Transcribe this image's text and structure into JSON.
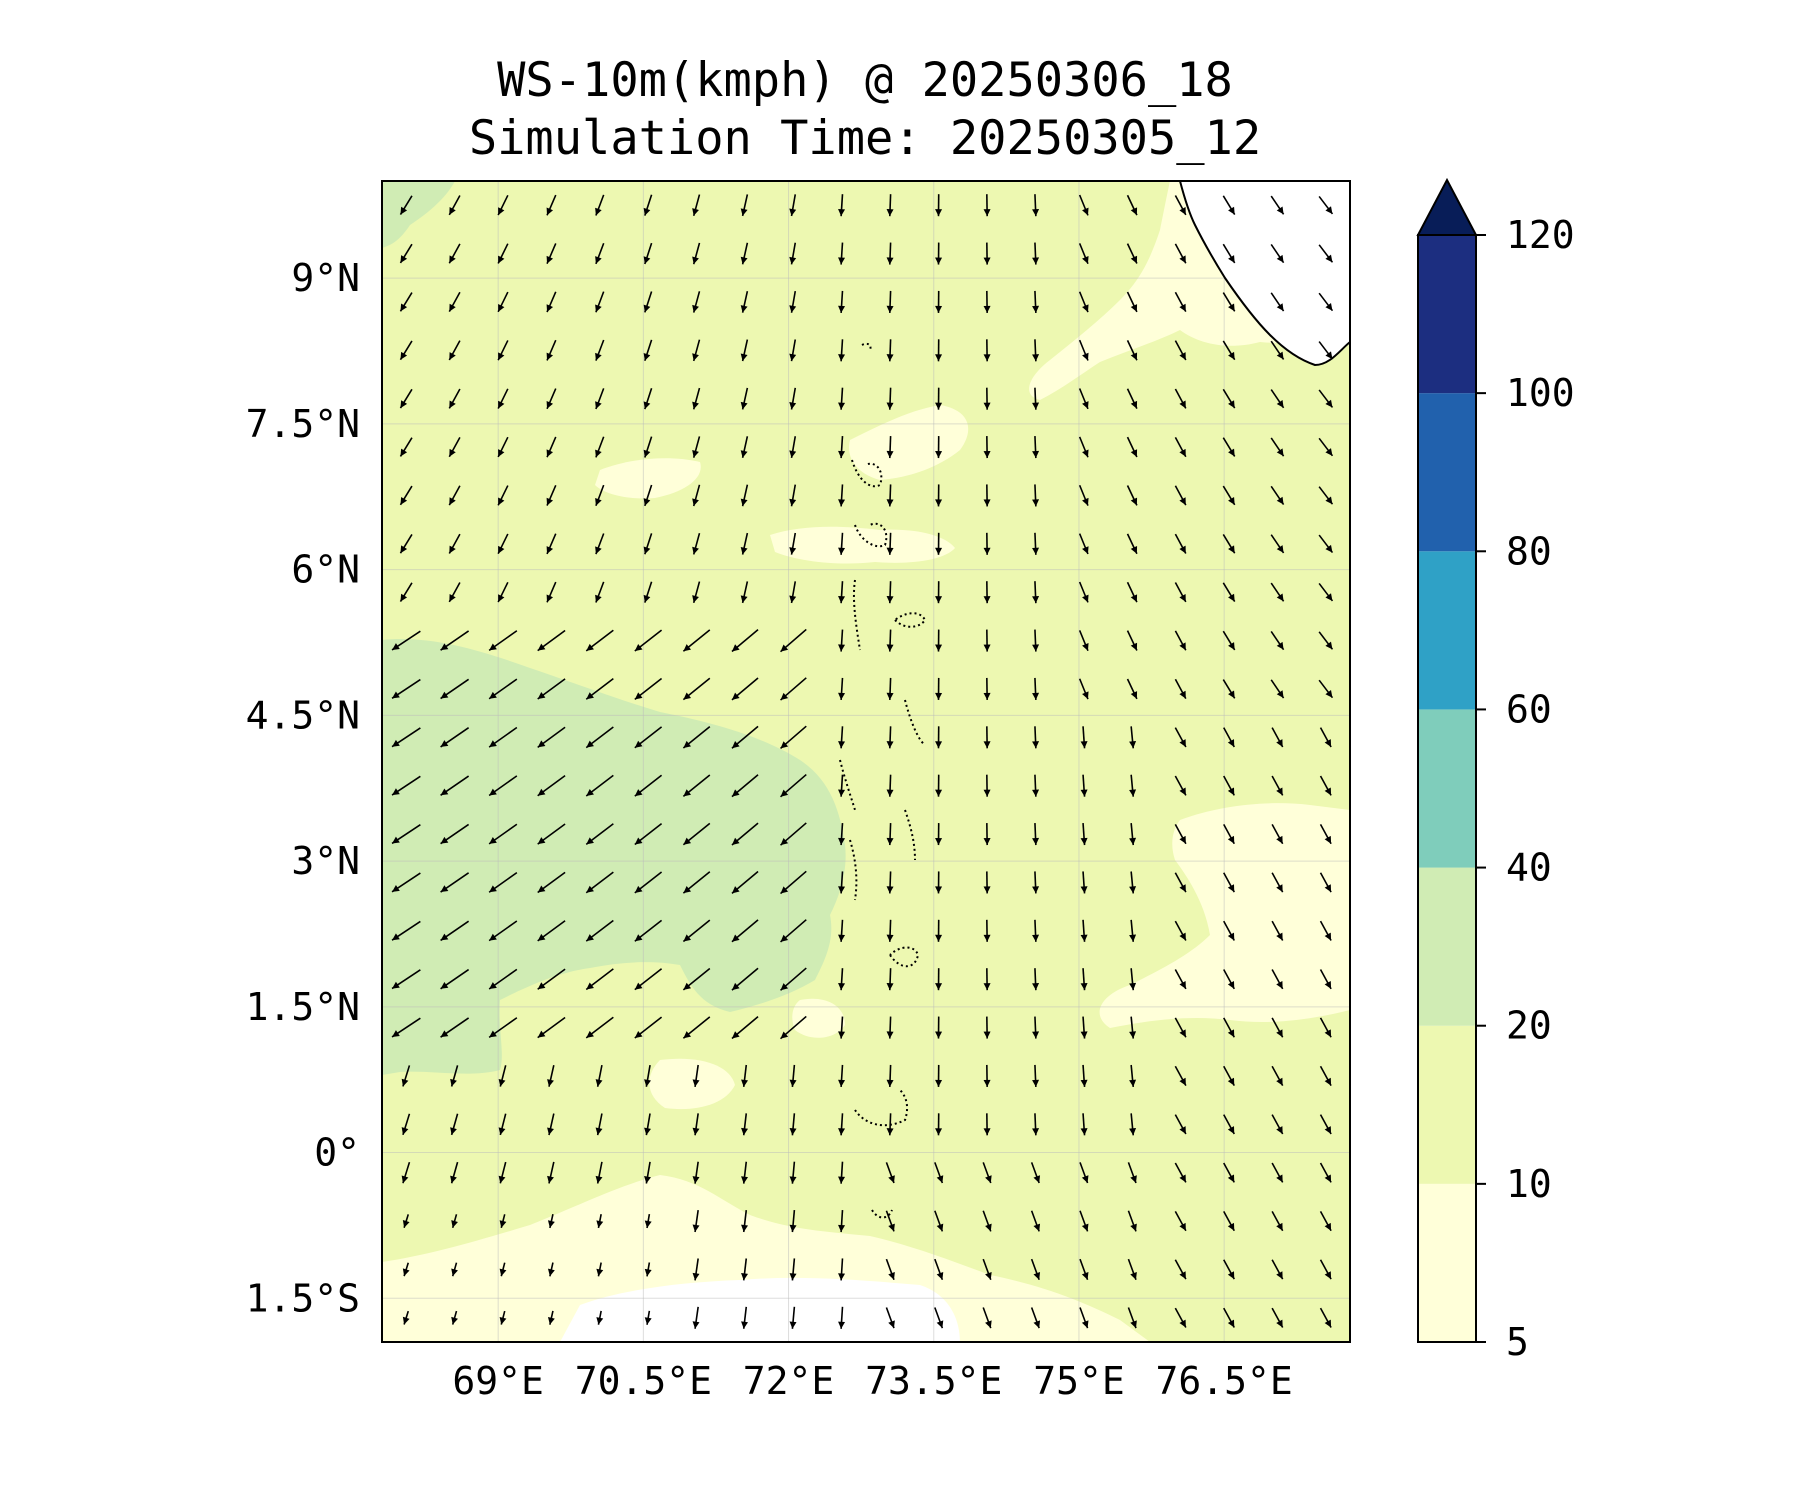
{
  "title": {
    "line1": "WS-10m(kmph) @ 20250306_18",
    "line2": "Simulation Time: 20250305_12"
  },
  "map": {
    "lon_range": [
      67.8,
      77.8
    ],
    "lat_range": [
      -1.95,
      10.0
    ],
    "x_ticks": [
      {
        "value": 69.0,
        "label": "69°E"
      },
      {
        "value": 70.5,
        "label": "70.5°E"
      },
      {
        "value": 72.0,
        "label": "72°E"
      },
      {
        "value": 73.5,
        "label": "73.5°E"
      },
      {
        "value": 75.0,
        "label": "75°E"
      },
      {
        "value": 76.5,
        "label": "76.5°E"
      }
    ],
    "y_ticks": [
      {
        "value": 9.0,
        "label": "9°N"
      },
      {
        "value": 7.5,
        "label": "7.5°N"
      },
      {
        "value": 6.0,
        "label": "6°N"
      },
      {
        "value": 4.5,
        "label": "4.5°N"
      },
      {
        "value": 3.0,
        "label": "3°N"
      },
      {
        "value": 1.5,
        "label": "1.5°N"
      },
      {
        "value": 0.0,
        "label": "0°"
      },
      {
        "value": -1.5,
        "label": "1.5°S"
      }
    ],
    "grid": true
  },
  "colorbar": {
    "levels": [
      5,
      10,
      20,
      40,
      60,
      80,
      100,
      120
    ],
    "tick_labels": [
      "5",
      "10",
      "20",
      "40",
      "60",
      "80",
      "100",
      "120"
    ],
    "colors": [
      "#ffffd9",
      "#edf8b1",
      "#d0ecb4",
      "#7fcdbb",
      "#2fa1c6",
      "#2161ad",
      "#1c2e80"
    ],
    "extend_color": "#081d58",
    "extend": "max"
  },
  "colors": {
    "land": "#ffffff",
    "below_min": "#ffffff"
  }
}
